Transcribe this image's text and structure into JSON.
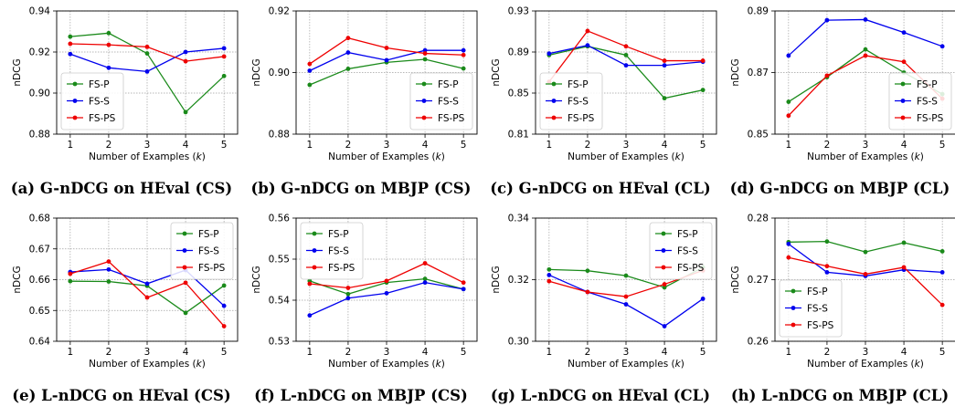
{
  "colors": {
    "FS-P": "#1a8a1a",
    "FS-S": "#0000ee",
    "FS-PS": "#ee0000"
  },
  "chart_data": [
    {
      "type": "line",
      "caption": "(a) G-nDCG on HEval (CS)",
      "xlabel": "Number of Examples (k)",
      "ylabel": "nDCG",
      "x": [
        1,
        2,
        3,
        4,
        5
      ],
      "ylim": [
        0.88,
        0.94
      ],
      "yticks": [
        "0.88",
        "0.90",
        "0.92",
        "0.94"
      ],
      "grid": true,
      "legend": "lower-left",
      "series": [
        {
          "name": "FS-P",
          "values": [
            0.9275,
            0.9292,
            0.9193,
            0.8907,
            0.9083
          ]
        },
        {
          "name": "FS-S",
          "values": [
            0.919,
            0.9123,
            0.9105,
            0.92,
            0.9218
          ]
        },
        {
          "name": "FS-PS",
          "values": [
            0.924,
            0.9235,
            0.9225,
            0.9155,
            0.9178
          ]
        }
      ]
    },
    {
      "type": "line",
      "caption": "(b) G-nDCG on MBJP (CS)",
      "xlabel": "Number of Examples (k)",
      "ylabel": "nDCG",
      "x": [
        1,
        2,
        3,
        4,
        5
      ],
      "ylim": [
        0.88,
        0.92
      ],
      "yticks": [
        "0.88",
        "0.90",
        "0.92"
      ],
      "grid": true,
      "legend": "lower-right",
      "series": [
        {
          "name": "FS-P",
          "values": [
            0.896,
            0.9012,
            0.9033,
            0.9043,
            0.9013
          ]
        },
        {
          "name": "FS-S",
          "values": [
            0.9006,
            0.9065,
            0.904,
            0.9072,
            0.9072
          ]
        },
        {
          "name": "FS-PS",
          "values": [
            0.9028,
            0.9112,
            0.908,
            0.9062,
            0.9057
          ]
        }
      ]
    },
    {
      "type": "line",
      "caption": "(c) G-nDCG on HEval (CL)",
      "xlabel": "Number of Examples (k)",
      "ylabel": "nDCG",
      "x": [
        1,
        2,
        3,
        4,
        5
      ],
      "ylim": [
        0.81,
        0.93
      ],
      "yticks": [
        "0.81",
        "0.85",
        "0.89",
        "0.93"
      ],
      "grid": true,
      "legend": "lower-left",
      "series": [
        {
          "name": "FS-P",
          "values": [
            0.887,
            0.8955,
            0.887,
            0.845,
            0.853
          ]
        },
        {
          "name": "FS-S",
          "values": [
            0.8885,
            0.8965,
            0.877,
            0.877,
            0.8805
          ]
        },
        {
          "name": "FS-PS",
          "values": [
            0.861,
            0.9105,
            0.8955,
            0.8815,
            0.8815
          ]
        }
      ]
    },
    {
      "type": "line",
      "caption": "(d) G-nDCG on MBJP (CL)",
      "xlabel": "Number of Examples (k)",
      "ylabel": "nDCG",
      "x": [
        1,
        2,
        3,
        4,
        5
      ],
      "ylim": [
        0.85,
        0.89
      ],
      "yticks": [
        "0.85",
        "0.87",
        "0.89"
      ],
      "grid": true,
      "legend": "lower-right",
      "series": [
        {
          "name": "FS-P",
          "values": [
            0.8605,
            0.8685,
            0.8775,
            0.87,
            0.863
          ]
        },
        {
          "name": "FS-S",
          "values": [
            0.8755,
            0.887,
            0.8872,
            0.883,
            0.8785
          ]
        },
        {
          "name": "FS-PS",
          "values": [
            0.856,
            0.869,
            0.8755,
            0.8735,
            0.8615
          ]
        }
      ]
    },
    {
      "type": "line",
      "caption": "(e) L-nDCG on HEval (CS)",
      "xlabel": "Number of Examples (k)",
      "ylabel": "nDCG",
      "x": [
        1,
        2,
        3,
        4,
        5
      ],
      "ylim": [
        0.64,
        0.68
      ],
      "yticks": [
        "0.64",
        "0.65",
        "0.66",
        "0.67",
        "0.68"
      ],
      "grid": true,
      "legend": "top-right",
      "series": [
        {
          "name": "FS-P",
          "values": [
            0.6595,
            0.6594,
            0.658,
            0.6492,
            0.6581
          ]
        },
        {
          "name": "FS-S",
          "values": [
            0.6625,
            0.6633,
            0.6587,
            0.6631,
            0.6515
          ]
        },
        {
          "name": "FS-PS",
          "values": [
            0.6619,
            0.6659,
            0.6542,
            0.659,
            0.6449
          ]
        }
      ]
    },
    {
      "type": "line",
      "caption": "(f) L-nDCG on MBJP (CS)",
      "xlabel": "Number of Examples (k)",
      "ylabel": "nDCG",
      "x": [
        1,
        2,
        3,
        4,
        5
      ],
      "ylim": [
        0.53,
        0.56
      ],
      "yticks": [
        "0.53",
        "0.54",
        "0.55",
        "0.56"
      ],
      "grid": true,
      "legend": "top-left",
      "series": [
        {
          "name": "FS-P",
          "values": [
            0.5447,
            0.5415,
            0.5443,
            0.5452,
            0.5427
          ]
        },
        {
          "name": "FS-S",
          "values": [
            0.5363,
            0.5405,
            0.5417,
            0.5443,
            0.5427
          ]
        },
        {
          "name": "FS-PS",
          "values": [
            0.544,
            0.543,
            0.5447,
            0.549,
            0.5443
          ]
        }
      ]
    },
    {
      "type": "line",
      "caption": "(g) L-nDCG on HEval (CL)",
      "xlabel": "Number of Examples (k)",
      "ylabel": "nDCG",
      "x": [
        1,
        2,
        3,
        4,
        5
      ],
      "ylim": [
        0.3,
        0.34
      ],
      "yticks": [
        "0.30",
        "0.32",
        "0.34"
      ],
      "grid": true,
      "legend": "top-right",
      "series": [
        {
          "name": "FS-P",
          "values": [
            0.3233,
            0.3229,
            0.3213,
            0.3175,
            0.324
          ]
        },
        {
          "name": "FS-S",
          "values": [
            0.3215,
            0.316,
            0.312,
            0.3049,
            0.3138
          ]
        },
        {
          "name": "FS-PS",
          "values": [
            0.3195,
            0.316,
            0.3145,
            0.3185,
            0.323
          ]
        }
      ]
    },
    {
      "type": "line",
      "caption": "(h) L-nDCG on MBJP (CL)",
      "xlabel": "Number of Examples (k)",
      "ylabel": "nDCG",
      "x": [
        1,
        2,
        3,
        4,
        5
      ],
      "ylim": [
        0.26,
        0.28
      ],
      "yticks": [
        "0.26",
        "0.27",
        "0.28"
      ],
      "grid": true,
      "legend": "lower-left",
      "series": [
        {
          "name": "FS-P",
          "values": [
            0.2761,
            0.2762,
            0.2745,
            0.276,
            0.2746
          ]
        },
        {
          "name": "FS-S",
          "values": [
            0.2758,
            0.2712,
            0.2706,
            0.2716,
            0.2712
          ]
        },
        {
          "name": "FS-PS",
          "values": [
            0.2736,
            0.2722,
            0.2709,
            0.272,
            0.2659
          ]
        }
      ]
    }
  ]
}
